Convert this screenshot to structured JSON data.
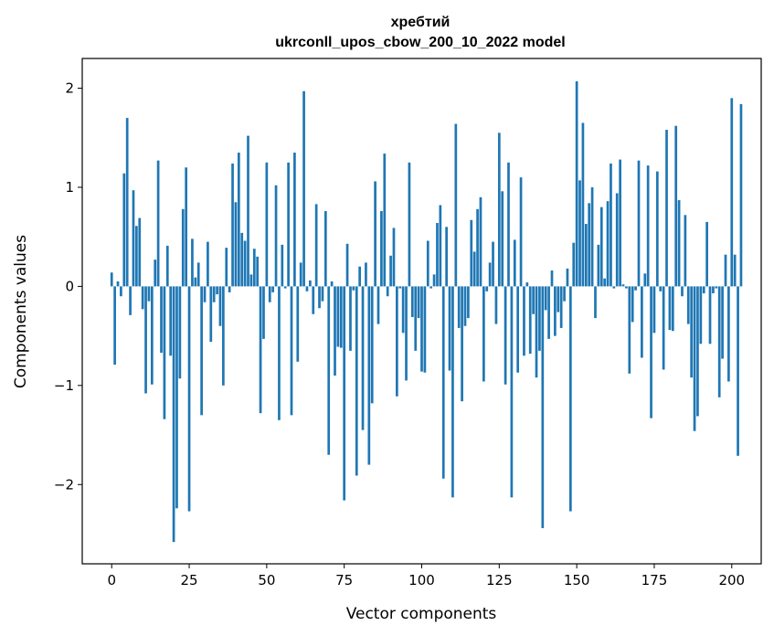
{
  "chart_data": {
    "type": "bar",
    "title": "хребтий",
    "subtitle": "ukrconll_upos_cbow_200_10_2022 model",
    "xlabel": "Vector components",
    "ylabel": "Components values",
    "xlim": [
      -9.5,
      209.5
    ],
    "ylim": [
      -2.8,
      2.3
    ],
    "xticks": [
      0,
      25,
      50,
      75,
      100,
      125,
      150,
      175,
      200
    ],
    "yticks": [
      -2,
      -1,
      0,
      1,
      2
    ],
    "ytick_labels": [
      "−2",
      "−1",
      "0",
      "1",
      "2"
    ],
    "bar_color": "#1f77b4",
    "grid": false,
    "values": [
      0.14,
      -0.79,
      0.05,
      -0.1,
      1.14,
      1.7,
      -0.29,
      0.97,
      0.61,
      0.69,
      -0.23,
      -1.08,
      -0.15,
      -0.99,
      0.27,
      1.27,
      -0.67,
      -1.34,
      0.41,
      -0.7,
      -2.58,
      -2.24,
      -0.93,
      0.78,
      1.2,
      -2.27,
      0.48,
      0.09,
      0.24,
      -1.3,
      -0.16,
      0.45,
      -0.56,
      -0.16,
      -0.08,
      -0.4,
      -1.0,
      0.39,
      -0.06,
      1.24,
      0.85,
      1.35,
      0.54,
      0.46,
      1.52,
      0.12,
      0.38,
      0.3,
      -1.28,
      -0.53,
      1.25,
      -0.16,
      -0.06,
      1.02,
      -1.35,
      0.42,
      -0.02,
      1.25,
      -1.3,
      1.35,
      -0.76,
      0.24,
      1.97,
      -0.05,
      0.06,
      -0.28,
      0.83,
      -0.22,
      -0.15,
      0.76,
      -1.7,
      0.05,
      -0.9,
      -0.61,
      -0.62,
      -2.16,
      0.43,
      -0.65,
      -0.04,
      -1.91,
      0.2,
      -1.45,
      0.24,
      -1.8,
      -1.18,
      1.06,
      -0.38,
      0.76,
      1.34,
      -0.1,
      0.31,
      0.59,
      -1.11,
      -0.02,
      -0.47,
      -0.95,
      1.25,
      -0.31,
      -0.65,
      -0.32,
      -0.86,
      -0.87,
      0.46,
      -0.02,
      0.12,
      0.64,
      0.82,
      -1.94,
      0.6,
      -0.85,
      -2.13,
      1.64,
      -0.42,
      -1.16,
      -0.4,
      -0.32,
      0.67,
      0.35,
      0.78,
      0.9,
      -0.96,
      -0.05,
      0.24,
      0.45,
      -0.38,
      1.55,
      0.96,
      -0.99,
      1.25,
      -2.13,
      0.47,
      -0.87,
      1.1,
      -0.7,
      0.04,
      -0.68,
      -0.28,
      -0.92,
      -0.65,
      -2.44,
      -0.24,
      -0.53,
      0.16,
      -0.5,
      -0.26,
      -0.42,
      -0.15,
      0.18,
      -2.27,
      0.44,
      2.07,
      1.07,
      1.65,
      0.63,
      0.84,
      1.0,
      -0.32,
      0.42,
      0.8,
      0.08,
      0.86,
      1.24,
      -0.02,
      0.94,
      1.28,
      0.02,
      -0.02,
      -0.88,
      -0.36,
      -0.04,
      1.27,
      -0.72,
      0.13,
      1.22,
      -1.33,
      -0.47,
      1.16,
      -0.05,
      -0.84,
      1.58,
      -0.44,
      -0.45,
      1.62,
      0.87,
      -0.1,
      0.72,
      -0.38,
      -0.92,
      -1.46,
      -1.31,
      -0.58,
      -0.07,
      0.65,
      -0.58,
      -0.07,
      -0.02,
      -1.12,
      -0.73,
      0.32,
      -0.96,
      1.9,
      0.32,
      -1.71,
      1.84
    ]
  }
}
